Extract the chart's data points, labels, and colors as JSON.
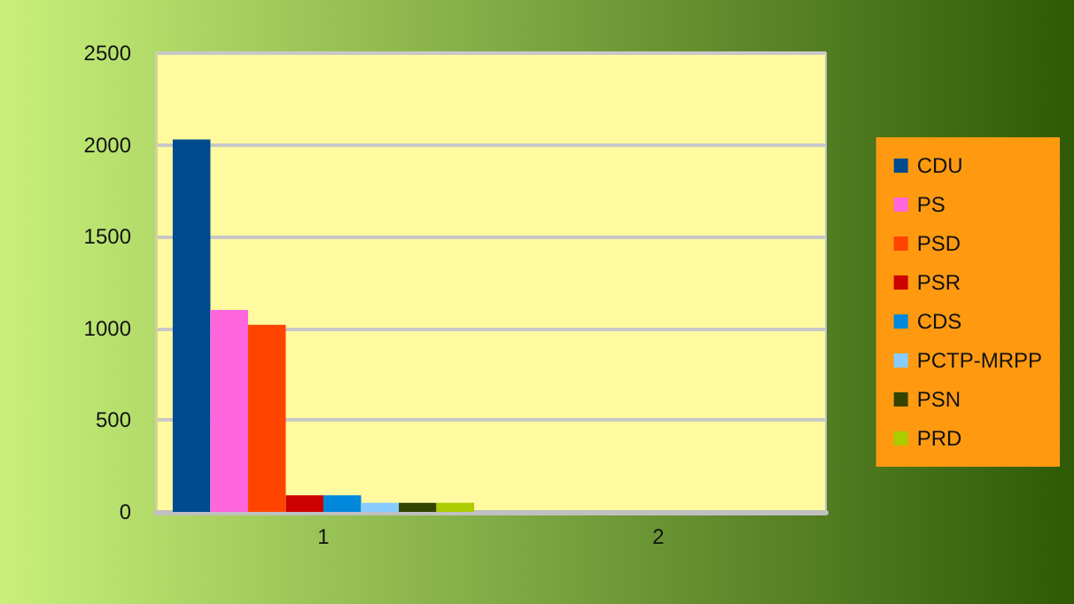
{
  "chart_data": {
    "type": "bar",
    "categories": [
      "1",
      "2"
    ],
    "series": [
      {
        "name": "CDU",
        "color": "#004a8f",
        "values": [
          2030,
          0
        ]
      },
      {
        "name": "PS",
        "color": "#ff66dd",
        "values": [
          1100,
          0
        ]
      },
      {
        "name": "PSD",
        "color": "#ff4400",
        "values": [
          1020,
          0
        ]
      },
      {
        "name": "PSR",
        "color": "#cc0000",
        "values": [
          90,
          0
        ]
      },
      {
        "name": "CDS",
        "color": "#0088dd",
        "values": [
          90,
          0
        ]
      },
      {
        "name": "PCTP-MRPP",
        "color": "#88ccff",
        "values": [
          50,
          0
        ]
      },
      {
        "name": "PSN",
        "color": "#334400",
        "values": [
          50,
          0
        ]
      },
      {
        "name": "PRD",
        "color": "#aacc00",
        "values": [
          50,
          0
        ]
      }
    ],
    "ylim": [
      0,
      2500
    ],
    "yticks": [
      0,
      500,
      1000,
      1500,
      2000,
      2500
    ],
    "grid": "y",
    "legend": "right"
  }
}
